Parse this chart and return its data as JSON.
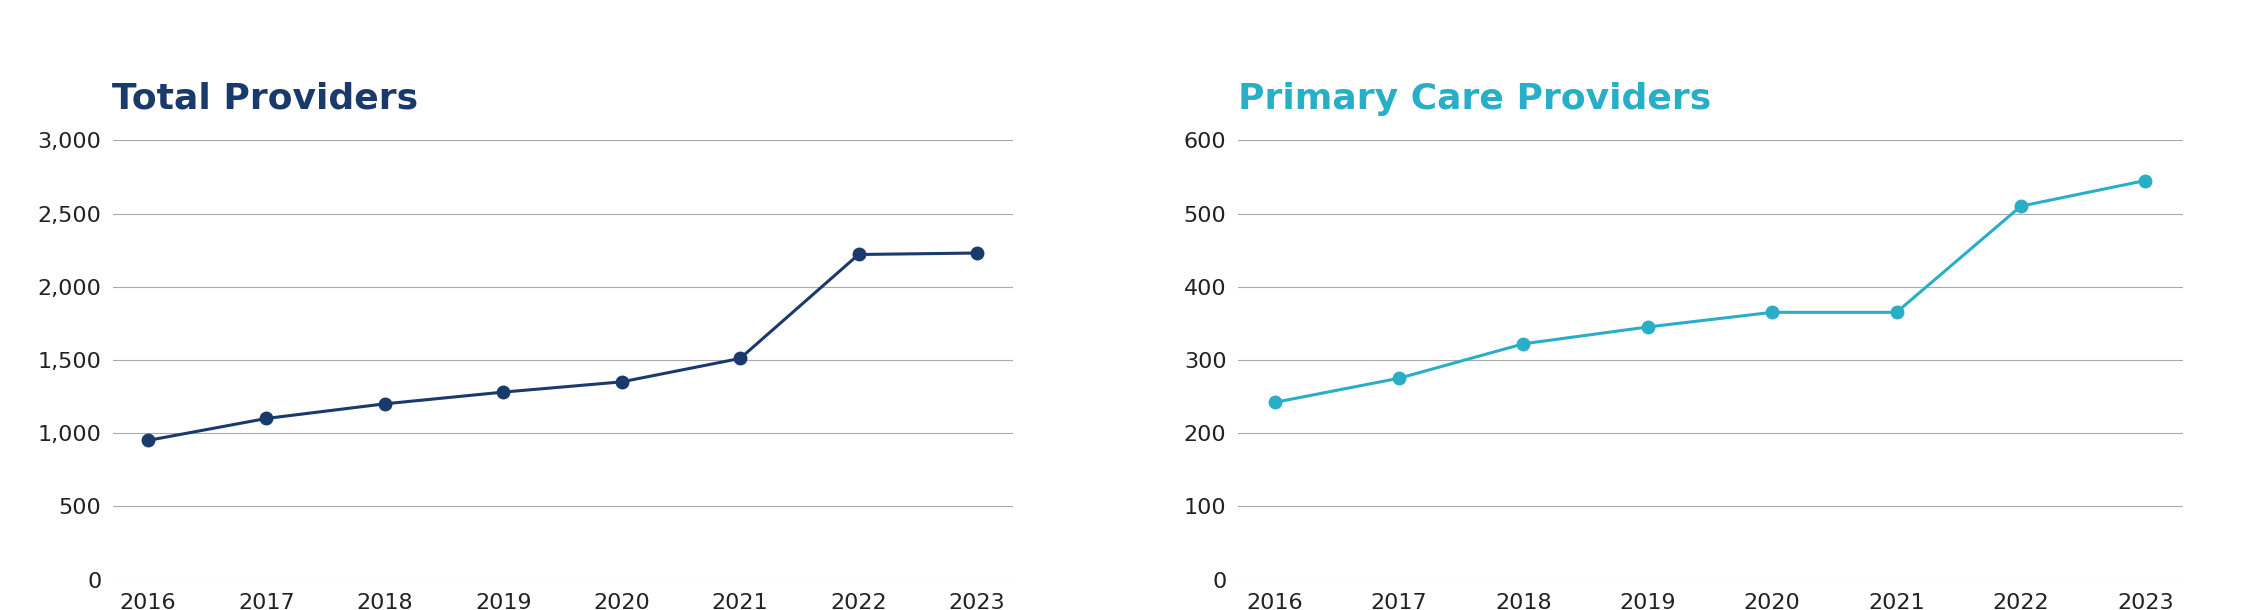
{
  "left_title": "Total Providers",
  "right_title": "Primary Care Providers",
  "years": [
    2016,
    2017,
    2018,
    2019,
    2020,
    2021,
    2022,
    2023
  ],
  "total_providers": [
    950,
    1100,
    1200,
    1280,
    1350,
    1510,
    2220,
    2230
  ],
  "primary_care_providers": [
    242,
    275,
    322,
    345,
    365,
    365,
    510,
    545
  ],
  "left_color": "#1a3a6b",
  "right_color": "#29aec8",
  "left_title_color": "#1a3a6b",
  "right_title_color": "#29aec8",
  "left_ylim": [
    0,
    3000
  ],
  "right_ylim": [
    0,
    600
  ],
  "left_yticks": [
    0,
    500,
    1000,
    1500,
    2000,
    2500,
    3000
  ],
  "right_yticks": [
    0,
    100,
    200,
    300,
    400,
    500,
    600
  ],
  "background_color": "#ffffff",
  "grid_color": "#aaaaaa",
  "marker_size": 9,
  "line_width": 2.2,
  "title_fontsize": 26,
  "tick_fontsize": 16
}
